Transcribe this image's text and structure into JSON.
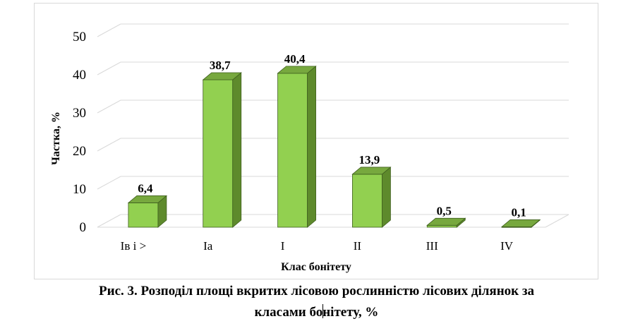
{
  "chart_data": {
    "type": "bar",
    "style": "3d-column",
    "categories": [
      "Iв і >",
      "Ia",
      "I",
      "II",
      "III",
      "IV"
    ],
    "values": [
      6.4,
      38.7,
      40.4,
      13.9,
      0.5,
      0.1
    ],
    "data_labels": [
      "6,4",
      "38,7",
      "40,4",
      "13,9",
      "0,5",
      "0,1"
    ],
    "xlabel": "Клас бонітету",
    "ylabel": "Частка, %",
    "ylim": [
      0,
      50
    ],
    "yticks": [
      "0",
      "10",
      "20",
      "30",
      "40",
      "50"
    ],
    "grid": true,
    "legend": "none",
    "colors": {
      "front": "#92d050",
      "side": "#5e8a2c",
      "top": "#77a83e",
      "edge": "#3f5f1e",
      "grid": "#d9d9d9"
    }
  },
  "caption": {
    "line1": "Рис. 3. Розподіл площі вкритих лісовою рослинністю лісових ділянок за",
    "line2a": "класами бо",
    "line2b": "нітету, %"
  }
}
